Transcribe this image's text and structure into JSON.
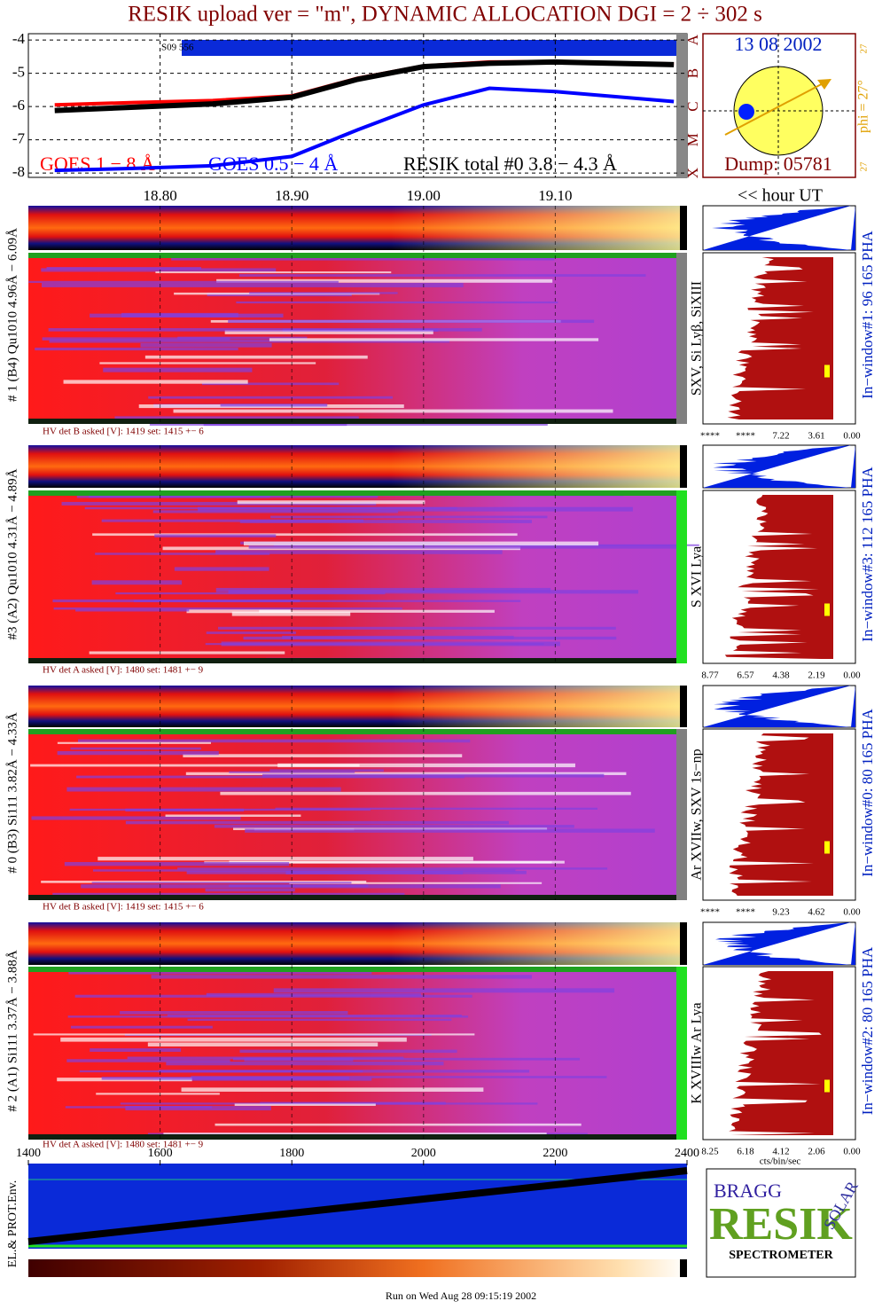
{
  "chart_data": {
    "type": "line",
    "title": "RESIK upload ver = \"m\", DYNAMIC ALLOCATION  DGI =   2 ÷ 302 s",
    "x": [
      18.72,
      18.78,
      18.84,
      18.9,
      18.95,
      19.0,
      19.05,
      19.1,
      19.19
    ],
    "xlim": [
      18.7,
      19.2
    ],
    "xticks": [
      {
        "value": 18.8,
        "label": "18.80"
      },
      {
        "value": 18.9,
        "label": "18.90"
      },
      {
        "value": 19.0,
        "label": "19.00"
      },
      {
        "value": 19.1,
        "label": "19.10"
      }
    ],
    "ylim": [
      -8.13,
      -3.81
    ],
    "yticks": [
      -4,
      -5,
      -6,
      -7,
      -8
    ],
    "grid": true,
    "class_labels": [
      "X",
      "M",
      "C",
      "B",
      "A"
    ],
    "bar_label": "S09 556",
    "series": [
      {
        "name": "GOES 1 − 8 Å",
        "color": "#ff0000",
        "values": [
          -5.95,
          -5.88,
          -5.82,
          -5.68,
          -5.15,
          -4.78,
          -4.66,
          -4.65,
          -4.72
        ]
      },
      {
        "name": "GOES 0.5 − 4 Å",
        "color": "#0000ff",
        "values": [
          -7.92,
          -7.86,
          -7.78,
          -7.5,
          -6.7,
          -5.95,
          -5.45,
          -5.55,
          -5.85
        ]
      },
      {
        "name": "RESIK total #0  3.8 − 4.3 Å",
        "color": "#000000",
        "values": [
          -6.12,
          -6.02,
          -5.92,
          -5.72,
          -5.18,
          -4.8,
          -4.7,
          -4.66,
          -4.74
        ]
      }
    ],
    "bottom_xlim": [
      1400,
      2400
    ],
    "bottom_xticks": [
      1400,
      1600,
      1800,
      2000,
      2200,
      2400
    ],
    "x_axis_label": "<< hour UT"
  },
  "sun": {
    "date": "13 08 2002",
    "phi": "phi = 27°",
    "top_note": "27",
    "bottom_note": "27",
    "dump": "Dump: 05781"
  },
  "panels": [
    {
      "label": "# 1 (B4) Qu1010 4.96Å − 6.09Å",
      "lines": "SXV, Si Lyβ, SiXIII",
      "window": "In−window#1:   96 165  PHA",
      "hv": "HV det B asked [V]:  1419 set:  1415  +−    6",
      "pha_axis": [
        "****",
        "****",
        "7.22",
        "3.61",
        "0.00"
      ]
    },
    {
      "label": "#3 (A2) Qu1010  4.31Å − 4.89Å",
      "lines": "S XVI Lya",
      "window": "In−window#3:   112 165  PHA",
      "hv": "HV det A asked [V]:  1480 set:  1481  +−    9",
      "pha_axis": [
        "8.77",
        "6.57",
        "4.38",
        "2.19",
        "0.00"
      ]
    },
    {
      "label": "# 0 (B3) Si111  3.82Å − 4.33Å",
      "lines": "Ar XVIIw,  SXV 1s−np",
      "window": "In−window#0:   80 165  PHA",
      "hv": "HV det B asked [V]:  1419 set:  1415  +−    6",
      "pha_axis": [
        "****",
        "****",
        "9.23",
        "4.62",
        "0.00"
      ]
    },
    {
      "label": "# 2 (A1) Si111  3.37Å − 3.88Å",
      "lines": "K XVIIIw  Ar Lya",
      "window": "In−window#2:   80 165  PHA",
      "hv": "HV det A asked [V]:  1480 set:  1481  +−    9",
      "pha_axis": [
        "8.25",
        "6.18",
        "4.12",
        "2.06",
        "0.00"
      ]
    }
  ],
  "pha_unit": "cts/bin/sec",
  "env_label": "EL.& PROT.Env.",
  "logo": {
    "bragg": "BRAGG",
    "resik": "RESIK",
    "solar": "SOLAR",
    "name": "SPECTROMETER"
  },
  "footer": "Run on Wed Aug 28 09:15:19 2002"
}
